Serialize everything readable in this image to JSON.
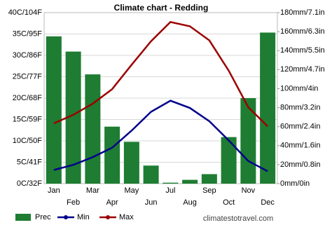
{
  "chart_data": {
    "type": "combo",
    "title": "Climate chart - Redding",
    "categories": [
      "Jan",
      "Feb",
      "Mar",
      "Apr",
      "May",
      "Jun",
      "Jul",
      "Aug",
      "Sep",
      "Oct",
      "Nov",
      "Dec"
    ],
    "series": [
      {
        "name": "Prec",
        "type": "bar",
        "axis": "y2",
        "color": "#1e7d32",
        "values": [
          155,
          139,
          115,
          60,
          44,
          19,
          1,
          4,
          10,
          49,
          90,
          159
        ]
      },
      {
        "name": "Min",
        "type": "line",
        "color": "#00008b",
        "values": [
          3.2,
          4.4,
          6.2,
          8.4,
          12.4,
          16.8,
          19.4,
          17.7,
          14.6,
          10.1,
          5.3,
          2.9
        ]
      },
      {
        "name": "Max",
        "type": "line",
        "color": "#9b0000",
        "values": [
          14.1,
          16.1,
          18.7,
          22.1,
          27.8,
          33.3,
          37.8,
          36.8,
          33.5,
          26.4,
          17.9,
          13.4
        ]
      }
    ],
    "ylim": [
      0,
      40
    ],
    "yticks": [
      {
        "value": 0,
        "label": "0C/32F"
      },
      {
        "value": 5,
        "label": "5C/41F"
      },
      {
        "value": 10,
        "label": "10C/50F"
      },
      {
        "value": 15,
        "label": "15C/59F"
      },
      {
        "value": 20,
        "label": "20C/68F"
      },
      {
        "value": 25,
        "label": "25C/77F"
      },
      {
        "value": 30,
        "label": "30C/86F"
      },
      {
        "value": 35,
        "label": "35C/95F"
      },
      {
        "value": 40,
        "label": "40C/104F"
      }
    ],
    "y2lim": [
      0,
      180
    ],
    "y2ticks": [
      {
        "value": 0,
        "label": "0mm/0in"
      },
      {
        "value": 20,
        "label": "20mm/0.8in"
      },
      {
        "value": 40,
        "label": "40mm/1.6in"
      },
      {
        "value": 60,
        "label": "60mm/2.4in"
      },
      {
        "value": 80,
        "label": "80mm/3.2in"
      },
      {
        "value": 100,
        "label": "100mm/4in"
      },
      {
        "value": 120,
        "label": "120mm/4.7in"
      },
      {
        "value": 140,
        "label": "140mm/5.5in"
      },
      {
        "value": 160,
        "label": "160mm/6.3in"
      },
      {
        "value": 180,
        "label": "180mm/7.1in"
      }
    ],
    "grid": true,
    "legend": "bottom-left",
    "watermark": "climatestotravel.com"
  }
}
